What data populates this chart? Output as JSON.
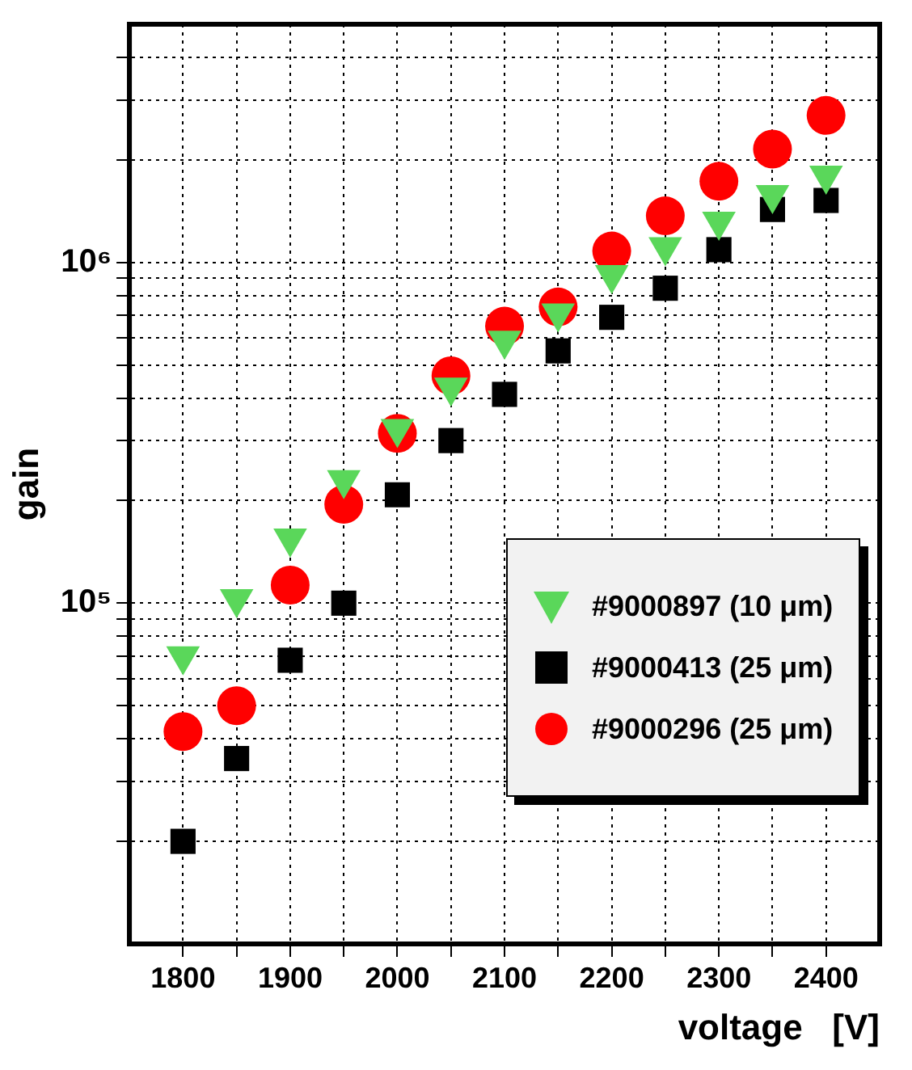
{
  "chart_data": {
    "type": "scatter",
    "xlabel": "voltage   [V]",
    "ylabel": "gain",
    "log": "y",
    "grid": true,
    "legend": "bottom right",
    "x": [
      1800,
      1850,
      1900,
      1950,
      2000,
      2050,
      2100,
      2150,
      2200,
      2250,
      2300,
      2350,
      2400
    ],
    "xlim": [
      1750,
      2450
    ],
    "xticks": [
      1800,
      {
        "value": 1850,
        "label": null
      },
      1900,
      {
        "value": 1950,
        "label": null
      },
      2000,
      {
        "value": 2050,
        "label": null
      },
      2100,
      {
        "value": 2150,
        "label": null
      },
      2200,
      {
        "value": 2250,
        "label": null
      },
      2300,
      {
        "value": 2350,
        "label": null
      },
      2400
    ],
    "ylim": [
      10000,
      5000000
    ],
    "yticks": [
      {
        "value": 20000,
        "label": null
      },
      {
        "value": 30000,
        "label": null
      },
      {
        "value": 40000,
        "label": null
      },
      {
        "value": 50000,
        "label": null
      },
      {
        "value": 60000,
        "label": null
      },
      {
        "value": 70000,
        "label": null
      },
      {
        "value": 80000,
        "label": null
      },
      {
        "value": 90000,
        "label": null
      },
      {
        "value": 100000,
        "label": "10⁵"
      },
      {
        "value": 200000,
        "label": null
      },
      {
        "value": 300000,
        "label": null
      },
      {
        "value": 400000,
        "label": null
      },
      {
        "value": 500000,
        "label": null
      },
      {
        "value": 600000,
        "label": null
      },
      {
        "value": 700000,
        "label": null
      },
      {
        "value": 800000,
        "label": null
      },
      {
        "value": 900000,
        "label": null
      },
      {
        "value": 1000000,
        "label": "10⁶"
      },
      {
        "value": 2000000,
        "label": null
      },
      {
        "value": 3000000,
        "label": null
      },
      {
        "value": 4000000,
        "label": null
      }
    ],
    "series": [
      {
        "name": "#9000897  (10 μm)",
        "color": "#5ad75a",
        "marker": "triangle",
        "values": [
          70000,
          103000,
          155000,
          230000,
          325000,
          430000,
          590000,
          710000,
          920000,
          1110000,
          1320000,
          1580000,
          1800000
        ]
      },
      {
        "name": "#9000413  (25 μm)",
        "color": "#000000",
        "marker": "square",
        "values": [
          20000,
          35000,
          68000,
          100000,
          208000,
          300000,
          410000,
          550000,
          690000,
          840000,
          1090000,
          1430000,
          1520000
        ]
      },
      {
        "name": "#9000296  (25 μm)",
        "color": "#ff0000",
        "marker": "circle",
        "values": [
          42000,
          50000,
          113000,
          195000,
          315000,
          465000,
          650000,
          740000,
          1080000,
          1370000,
          1730000,
          2150000,
          2700000
        ]
      }
    ]
  }
}
